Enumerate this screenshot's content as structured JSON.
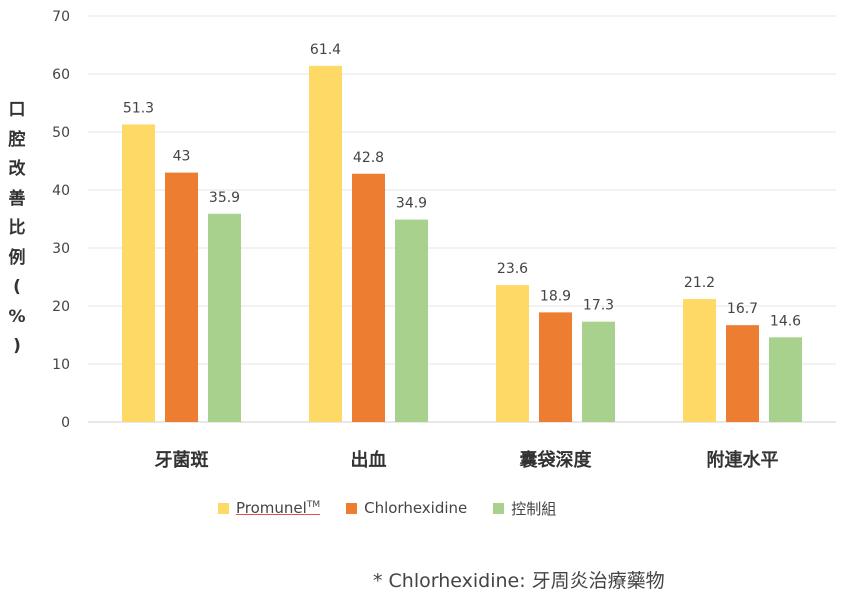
{
  "chart_data": {
    "type": "bar",
    "title": "",
    "ylabel": "口腔改善比例(%)",
    "ylabel_chars": [
      "口",
      "腔",
      "改",
      "善",
      "比",
      "例",
      "(",
      "%",
      ")"
    ],
    "ylim": [
      0,
      70
    ],
    "yticks": [
      "0",
      "10",
      "20",
      "30",
      "40",
      "50",
      "60",
      "70"
    ],
    "grid": true,
    "legend_position": "bottom",
    "categories": [
      "牙菌斑",
      "出血",
      "囊袋深度",
      "附連水平"
    ],
    "series": [
      {
        "name": "Promunel™",
        "name_main": "Promunel",
        "name_sup": "TM",
        "color": "#FFD966",
        "values": [
          51.3,
          61.4,
          23.6,
          21.2
        ],
        "labels": [
          "51.3",
          "61.4",
          "23.6",
          "21.2"
        ]
      },
      {
        "name": "Chlorhexidine",
        "color": "#ED7D31",
        "values": [
          43,
          42.8,
          18.9,
          16.7
        ],
        "labels": [
          "43",
          "42.8",
          "18.9",
          "16.7"
        ]
      },
      {
        "name": "控制組",
        "color": "#A9D18E",
        "values": [
          35.9,
          34.9,
          17.3,
          14.6
        ],
        "labels": [
          "35.9",
          "34.9",
          "17.3",
          "14.6"
        ]
      }
    ]
  },
  "footnote": "* Chlorhexidine: 牙周炎治療藥物"
}
